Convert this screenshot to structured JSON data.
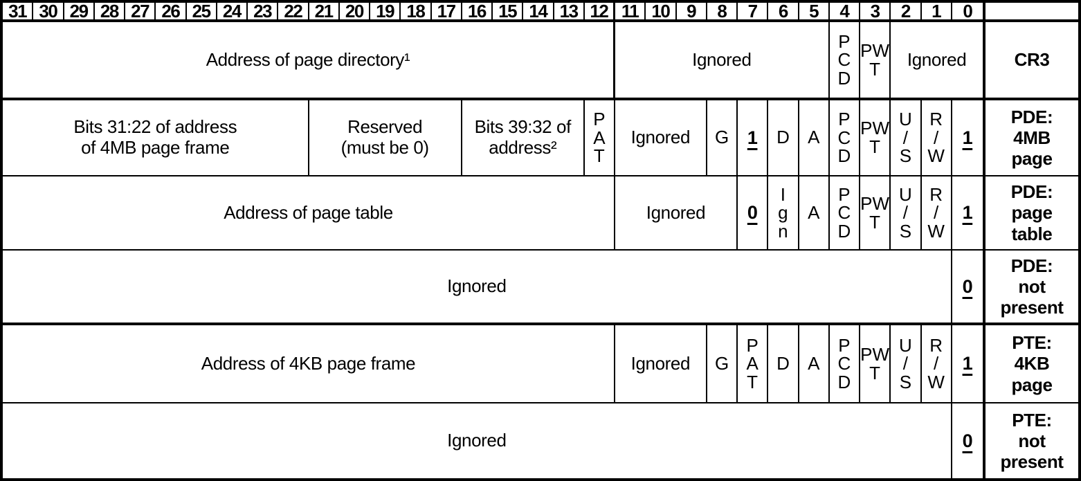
{
  "figure": {
    "description": "Formats of CR3 and paging-structure entries with 32-bit paging",
    "colors": {
      "border": "#000000",
      "background": "#ffffff",
      "text": "#000000"
    },
    "header": {
      "bits": [
        "31",
        "30",
        "29",
        "28",
        "27",
        "26",
        "25",
        "24",
        "23",
        "22",
        "21",
        "20",
        "19",
        "18",
        "17",
        "16",
        "15",
        "14",
        "13",
        "12",
        "11",
        "10",
        "9",
        "8",
        "7",
        "6",
        "5",
        "4",
        "3",
        "2",
        "1",
        "0"
      ]
    },
    "rows": {
      "cr3": {
        "label": "CR3",
        "address": "Address of page directory¹",
        "ignored_high": "Ignored",
        "pcd": "P\nC\nD",
        "pwt": "PW\nT",
        "ignored_low": "Ignored"
      },
      "pde_4mb": {
        "label": "PDE:\n4MB\npage",
        "addr_high": "Bits 31:22 of address\nof 4MB page frame",
        "reserved": "Reserved\n(must be 0)",
        "addr_ext": "Bits 39:32 of\naddress²",
        "pat": "P\nA\nT",
        "ignored": "Ignored",
        "g": "G",
        "ps": "1",
        "d": "D",
        "a": "A",
        "pcd": "P\nC\nD",
        "pwt": "PW\nT",
        "us": "U\n/\nS",
        "rw": "R\n/\nW",
        "present": "1"
      },
      "pde_page_table": {
        "label": "PDE:\npage\ntable",
        "address": "Address of page table",
        "ignored": "Ignored",
        "ps": "0",
        "ign": "I\ng\nn",
        "a": "A",
        "pcd": "P\nC\nD",
        "pwt": "PW\nT",
        "us": "U\n/\nS",
        "rw": "R\n/\nW",
        "present": "1"
      },
      "pde_not_present": {
        "label": "PDE:\nnot\npresent",
        "ignored": "Ignored",
        "present": "0"
      },
      "pte_4kb": {
        "label": "PTE:\n4KB\npage",
        "address": "Address of 4KB page frame",
        "ignored": "Ignored",
        "g": "G",
        "pat": "P\nA\nT",
        "d": "D",
        "a": "A",
        "pcd": "P\nC\nD",
        "pwt": "PW\nT",
        "us": "U\n/\nS",
        "rw": "R\n/\nW",
        "present": "1"
      },
      "pte_not_present": {
        "label": "PTE:\nnot\npresent",
        "ignored": "Ignored",
        "present": "0"
      }
    }
  }
}
